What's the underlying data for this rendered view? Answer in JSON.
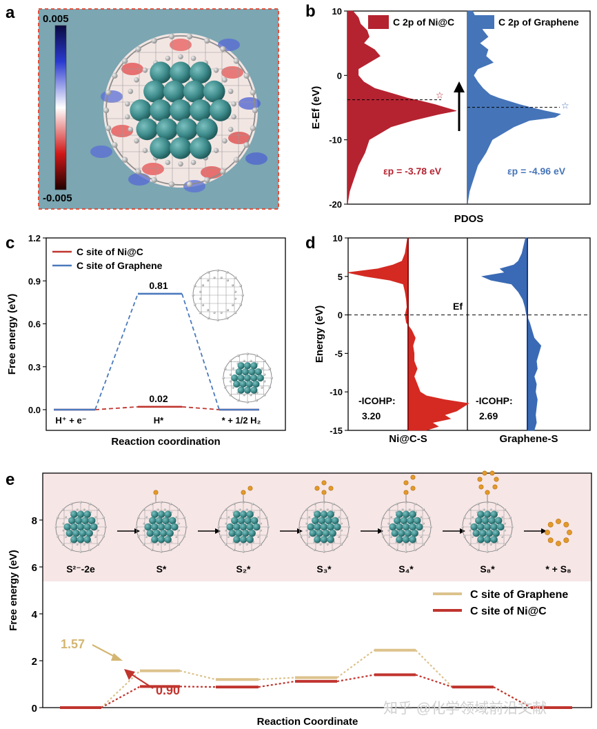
{
  "panels": {
    "a": "a",
    "b": "b",
    "c": "c",
    "d": "d",
    "e": "e"
  },
  "panel_a": {
    "colorbar_max": "0.005",
    "colorbar_min": "-0.005",
    "colors": {
      "background": "#7ba6b2",
      "frame": "#e0503c",
      "ni_atom": "#3d8a8a",
      "c_atom": "#a8a8a8"
    }
  },
  "chart_data": [
    {
      "panel": "b",
      "type": "area",
      "ylabel": "E-Ef (eV)",
      "xlabel": "PDOS",
      "ylim": [
        -20,
        10
      ],
      "yticks": [
        10,
        0,
        -10,
        -20
      ],
      "grid": false,
      "legend_position": "top",
      "series": [
        {
          "name": "C 2p of Ni@C",
          "color": "#b52330",
          "energy": [
            -20,
            -18,
            -16,
            -14,
            -12,
            -10,
            -8,
            -7,
            -6,
            -5.5,
            -5,
            -4.5,
            -4,
            -3.5,
            -3,
            -2.5,
            -2,
            -1,
            0,
            1,
            2,
            3,
            4,
            5,
            6,
            7,
            8,
            9,
            10
          ],
          "dos": [
            0.0,
            0.02,
            0.06,
            0.1,
            0.16,
            0.2,
            0.4,
            0.6,
            0.85,
            1.0,
            0.9,
            0.8,
            0.68,
            0.55,
            0.45,
            0.35,
            0.25,
            0.15,
            0.1,
            0.1,
            0.2,
            0.3,
            0.25,
            0.15,
            0.2,
            0.18,
            0.12,
            0.1,
            0.05
          ]
        },
        {
          "name": "C 2p of Graphene",
          "color": "#4574b8",
          "energy": [
            -20,
            -18,
            -16,
            -14,
            -12,
            -10,
            -8,
            -7,
            -6.5,
            -6,
            -5.5,
            -5,
            -4.5,
            -4,
            -3.5,
            -3,
            -2,
            -1,
            0,
            1,
            2,
            3,
            4,
            5,
            6,
            7,
            8,
            9,
            10
          ],
          "dos": [
            0.0,
            0.02,
            0.06,
            0.1,
            0.18,
            0.24,
            0.45,
            0.6,
            0.85,
            0.9,
            0.75,
            0.62,
            0.5,
            0.4,
            0.3,
            0.22,
            0.15,
            0.1,
            0.06,
            0.1,
            0.25,
            0.18,
            0.2,
            0.12,
            0.2,
            0.15,
            0.12,
            0.08,
            0.05
          ]
        }
      ],
      "annotations": {
        "nic_center_energy": -3.78,
        "nic_label": "εp = -3.78 eV",
        "gr_center_energy": -4.96,
        "gr_label": "εp = -4.96 eV"
      }
    },
    {
      "panel": "c",
      "type": "line",
      "ylabel": "Free energy (eV)",
      "xlabel": "Reaction coordination",
      "ylim": [
        0,
        1.2
      ],
      "yticks": [
        0.0,
        0.3,
        0.6,
        0.9,
        1.2
      ],
      "categories": [
        "H⁺ + e⁻",
        "H*",
        "* + 1/2 H₂"
      ],
      "legend_position": "top-left",
      "series": [
        {
          "name": "C site of Ni@C",
          "color": "#c0342e",
          "values": [
            0.0,
            0.02,
            0.0
          ],
          "labels": [
            "",
            "0.02",
            ""
          ]
        },
        {
          "name": "C site of Graphene",
          "color": "#4a79bd",
          "values": [
            0.0,
            0.81,
            0.0
          ],
          "labels": [
            "",
            "0.81",
            ""
          ]
        }
      ]
    },
    {
      "panel": "d",
      "type": "area",
      "ylabel": "Energy (eV)",
      "ylim": [
        -15,
        10
      ],
      "yticks": [
        10,
        5,
        0,
        -5,
        -10,
        -15
      ],
      "fermi_label": "Ef",
      "grid": false,
      "series": [
        {
          "name": "Ni@C-S",
          "color": "#d42a22",
          "icohp_label": "-ICOHP:",
          "icohp_value": "3.20",
          "energy": [
            -15,
            -14.5,
            -14,
            -13.5,
            -13,
            -12.5,
            -12,
            -11.5,
            -11,
            -10.5,
            -10,
            -9,
            -8,
            -7,
            -6,
            -5,
            -4,
            -3,
            -2,
            -1,
            0,
            1,
            2,
            3,
            4,
            4.5,
            5,
            5.5,
            6,
            6.5,
            7,
            8,
            9,
            10
          ],
          "cohp": [
            0.3,
            0.5,
            0.4,
            0.7,
            0.6,
            0.8,
            0.9,
            1.0,
            0.6,
            0.3,
            0.2,
            0.15,
            0.1,
            0.15,
            0.1,
            0.1,
            0.08,
            0.12,
            0.06,
            -0.03,
            -0.05,
            -0.02,
            -0.03,
            -0.05,
            -0.08,
            -0.3,
            -0.7,
            -1.0,
            -0.5,
            -0.25,
            -0.1,
            -0.05,
            -0.03,
            -0.01
          ]
        },
        {
          "name": "Graphene-S",
          "color": "#3a6ab5",
          "icohp_label": "-ICOHP:",
          "icohp_value": "2.69",
          "energy": [
            -15,
            -14,
            -13,
            -12,
            -11,
            -10,
            -9,
            -8,
            -7,
            -6,
            -5,
            -4,
            -3,
            -2,
            -1,
            0,
            1,
            2,
            3,
            4,
            4.5,
            5,
            5.5,
            6,
            6.5,
            7,
            8,
            9,
            10
          ],
          "cohp": [
            0.15,
            0.2,
            0.18,
            0.2,
            0.22,
            0.18,
            0.2,
            0.15,
            0.22,
            0.2,
            0.25,
            0.3,
            0.15,
            0.1,
            0.05,
            -0.02,
            -0.05,
            -0.1,
            -0.2,
            -0.35,
            -0.8,
            -1.0,
            -0.5,
            -0.6,
            -0.3,
            -0.2,
            -0.12,
            -0.08,
            -0.04
          ]
        }
      ]
    },
    {
      "panel": "e",
      "type": "line",
      "ylabel": "Free energy (eV)",
      "xlabel": "Reaction Coordinate",
      "ylim": [
        -1,
        9
      ],
      "yticks": [
        0,
        2,
        4,
        6,
        8
      ],
      "categories": [
        "S²⁻-2e",
        "S*",
        "S₂*",
        "S₃*",
        "S₄*",
        "S₈*",
        "* + S₈"
      ],
      "legend_position": "right",
      "series": [
        {
          "name": "C site of Graphene",
          "color": "#dcc28c",
          "values": [
            0.0,
            1.57,
            1.2,
            1.28,
            2.45,
            0.88,
            0.0
          ]
        },
        {
          "name": "C site of Ni@C",
          "color": "#c0342e",
          "values": [
            0.0,
            0.9,
            0.88,
            1.12,
            1.4,
            0.88,
            0.0
          ]
        }
      ],
      "annotations": {
        "graphene_label": "1.57",
        "nic_label": "0.90"
      }
    }
  ],
  "watermark": "知乎 @化学领域前沿文献"
}
